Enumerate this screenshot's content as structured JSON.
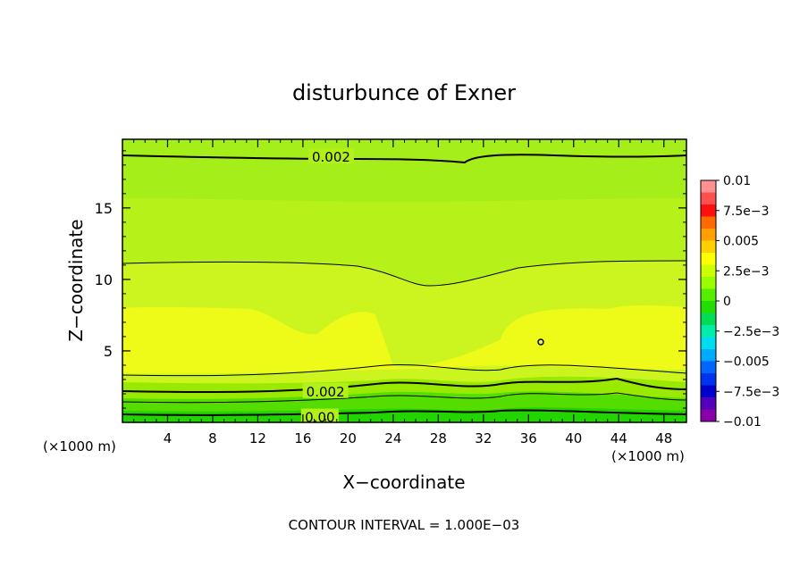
{
  "chart_data": {
    "type": "heatmap",
    "title": "disturbunce of Exner",
    "xlabel": "X−coordinate",
    "ylabel": "Z−coordinate",
    "x_unit_left": "(×1000 m)",
    "x_unit_right": "(×1000 m)",
    "xlim": [
      0,
      50
    ],
    "ylim": [
      0,
      19.8
    ],
    "x_ticks": [
      4,
      8,
      12,
      16,
      20,
      24,
      28,
      32,
      36,
      40,
      44,
      48
    ],
    "y_ticks": [
      5,
      10,
      15
    ],
    "footer": "CONTOUR INTERVAL = 1.000E−03",
    "contour_labels": [
      {
        "text": "0.002",
        "x": 18.5,
        "z": 18.6
      },
      {
        "text": "0.002",
        "x": 18.0,
        "z": 2.2
      },
      {
        "text": "0.00",
        "x": 17.5,
        "z": 0.4
      }
    ],
    "colorbar": {
      "tick_labels": [
        "0.01",
        "7.5e−3",
        "0.005",
        "2.5e−3",
        "0",
        "−2.5e−3",
        "−0.005",
        "−7.5e−3",
        "−0.01"
      ],
      "colors": [
        "#ff9090",
        "#ff5050",
        "#ff1010",
        "#ff6a00",
        "#ffa000",
        "#ffd000",
        "#ffff00",
        "#ccff00",
        "#99ff00",
        "#55ee00",
        "#22dd00",
        "#00dd55",
        "#00eeaa",
        "#00ddee",
        "#00aaff",
        "#0066ff",
        "#0033ee",
        "#0000cc",
        "#5500bb",
        "#8800aa"
      ]
    }
  }
}
